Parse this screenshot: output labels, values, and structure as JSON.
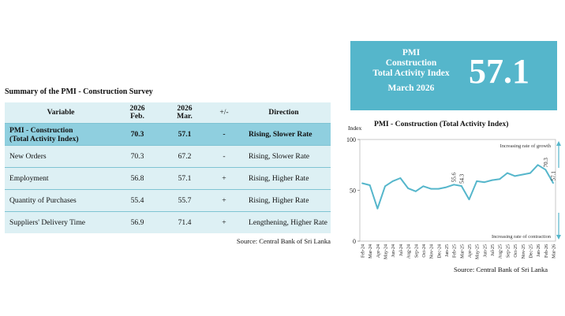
{
  "table": {
    "title": "Summary of the PMI - Construction Survey",
    "headers": {
      "variable": "Variable",
      "feb_year": "2026",
      "feb_month": "Feb.",
      "mar_year": "2026",
      "mar_month": "Mar.",
      "sign": "+/-",
      "direction": "Direction"
    },
    "rows": [
      {
        "variable_line1": "PMI - Construction",
        "variable_line2": "(Total Activity Index)",
        "feb": "70.3",
        "mar": "57.1",
        "sign": "-",
        "direction": "Rising, Slower Rate"
      },
      {
        "variable_line1": "New Orders",
        "variable_line2": "",
        "feb": "70.3",
        "mar": "67.2",
        "sign": "-",
        "direction": "Rising, Slower Rate"
      },
      {
        "variable_line1": "Employment",
        "variable_line2": "",
        "feb": "56.8",
        "mar": "57.1",
        "sign": "+",
        "direction": "Rising, Higher Rate"
      },
      {
        "variable_line1": "Quantity of Purchases",
        "variable_line2": "",
        "feb": "55.4",
        "mar": "55.7",
        "sign": "+",
        "direction": "Rising, Higher Rate"
      },
      {
        "variable_line1": "Suppliers' Delivery Time",
        "variable_line2": "",
        "feb": "56.9",
        "mar": "71.4",
        "sign": "+",
        "direction": "Lengthening, Higher Rate"
      }
    ],
    "source": "Source: Central Bank of Sri Lanka"
  },
  "summary_box": {
    "line1": "PMI",
    "line2": "Construction",
    "line3": "Total Activity Index",
    "month": "March 2026",
    "value": "57.1"
  },
  "chart_data": {
    "type": "line",
    "title": "PMI - Construction (Total Activity Index)",
    "ylabel": "Index",
    "ylim": [
      0,
      100
    ],
    "yticks": [
      0,
      50,
      100
    ],
    "grid": false,
    "categories": [
      "Feb-24",
      "Mar-24",
      "Apr-24",
      "May-24",
      "Jun-24",
      "Jul-24",
      "Aug-24",
      "Sep-24",
      "Oct-24",
      "Nov-24",
      "Dec-24",
      "Jan-25",
      "Feb-25",
      "Mar-25",
      "Apr-25",
      "May-25",
      "Jun-25",
      "Jul-25",
      "Aug-25",
      "Sep-25",
      "Oct-25",
      "Nov-25",
      "Dec-25",
      "Jan-26",
      "Feb-26",
      "Mar-26"
    ],
    "series": [
      {
        "color": "#55b6cb",
        "values": [
          57.0,
          55.0,
          32.0,
          54.0,
          59.0,
          62.0,
          52.0,
          49.0,
          54.0,
          51.5,
          51.5,
          53.0,
          55.6,
          54.3,
          41.0,
          59.0,
          58.0,
          60.0,
          61.0,
          67.0,
          64.0,
          65.5,
          67.0,
          75.0,
          70.3,
          57.1
        ]
      }
    ],
    "data_labels": [
      {
        "index": 12,
        "text": "55.6"
      },
      {
        "index": 13,
        "text": "54.3"
      },
      {
        "index": 24,
        "text": "70.3"
      },
      {
        "index": 25,
        "text": "57.1"
      }
    ],
    "annotations": {
      "growth": "Increasing rate of growth",
      "contraction": "Increasing rate of contraction"
    },
    "source": "Source: Central Bank of Sri Lanka"
  }
}
